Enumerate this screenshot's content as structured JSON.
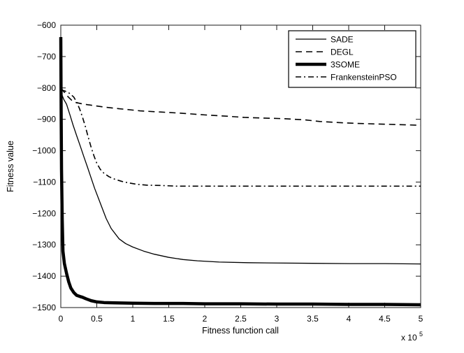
{
  "figure": {
    "background": "#ffffff",
    "foreground": "#000000",
    "axis_color": "#1a1a1a"
  },
  "chart_data": {
    "type": "line",
    "title": "",
    "xlabel": "Fitness function call",
    "ylabel": "Fitness value",
    "x_exponent": {
      "prefix": "x 10",
      "exp": "5"
    },
    "x_unit_multiplier": 100000,
    "xlim": [
      0,
      5
    ],
    "ylim": [
      -1500,
      -600
    ],
    "grid": false,
    "legend_position": "top-right",
    "x_ticks": [
      0,
      0.5,
      1,
      1.5,
      2,
      2.5,
      3,
      3.5,
      4,
      4.5,
      5
    ],
    "x_tick_labels": [
      "0",
      "0.5",
      "1",
      "1.5",
      "2",
      "2.5",
      "3",
      "3.5",
      "4",
      "4.5",
      "5"
    ],
    "y_ticks": [
      -600,
      -700,
      -800,
      -900,
      -1000,
      -1100,
      -1200,
      -1300,
      -1400,
      -1500
    ],
    "y_tick_labels": [
      "−600",
      "−700",
      "−800",
      "−900",
      "−1000",
      "−1100",
      "−1200",
      "−1300",
      "−1400",
      "−1500"
    ],
    "series": [
      {
        "name": "SADE",
        "line_style": "solid",
        "line_width": 1.3,
        "color": "#000000",
        "points": [
          [
            0,
            -812
          ],
          [
            0.04,
            -836
          ],
          [
            0.08,
            -852
          ],
          [
            0.13,
            -888
          ],
          [
            0.17,
            -918
          ],
          [
            0.22,
            -952
          ],
          [
            0.27,
            -985
          ],
          [
            0.32,
            -1019
          ],
          [
            0.37,
            -1052
          ],
          [
            0.42,
            -1086
          ],
          [
            0.47,
            -1120
          ],
          [
            0.52,
            -1150
          ],
          [
            0.57,
            -1180
          ],
          [
            0.63,
            -1216
          ],
          [
            0.7,
            -1248
          ],
          [
            0.81,
            -1281
          ],
          [
            0.9,
            -1296
          ],
          [
            1.0,
            -1307
          ],
          [
            1.15,
            -1320
          ],
          [
            1.3,
            -1330
          ],
          [
            1.5,
            -1340
          ],
          [
            1.7,
            -1347
          ],
          [
            1.9,
            -1351
          ],
          [
            2.2,
            -1355
          ],
          [
            2.6,
            -1357
          ],
          [
            3.0,
            -1358
          ],
          [
            3.5,
            -1359
          ],
          [
            4.0,
            -1360
          ],
          [
            4.5,
            -1360
          ],
          [
            5.0,
            -1361
          ]
        ]
      },
      {
        "name": "DEGL",
        "line_style": "dashed",
        "line_width": 1.6,
        "color": "#000000",
        "points": [
          [
            0,
            -800
          ],
          [
            0.05,
            -814
          ],
          [
            0.1,
            -828
          ],
          [
            0.15,
            -839
          ],
          [
            0.2,
            -846
          ],
          [
            0.3,
            -851
          ],
          [
            0.45,
            -856
          ],
          [
            0.6,
            -861
          ],
          [
            0.8,
            -866
          ],
          [
            1.1,
            -873
          ],
          [
            1.4,
            -877
          ],
          [
            1.7,
            -881
          ],
          [
            2.0,
            -886
          ],
          [
            2.3,
            -890
          ],
          [
            2.55,
            -894
          ],
          [
            2.8,
            -896
          ],
          [
            3.1,
            -898
          ],
          [
            3.4,
            -902
          ],
          [
            3.6,
            -907
          ],
          [
            3.9,
            -911
          ],
          [
            4.1,
            -913
          ],
          [
            4.4,
            -915
          ],
          [
            4.7,
            -917
          ],
          [
            5.0,
            -919
          ]
        ]
      },
      {
        "name": "3SOME",
        "line_style": "solid",
        "line_width": 4.5,
        "color": "#000000",
        "points": [
          [
            0,
            -638
          ],
          [
            0.005,
            -880
          ],
          [
            0.01,
            -1060
          ],
          [
            0.02,
            -1220
          ],
          [
            0.03,
            -1320
          ],
          [
            0.05,
            -1360
          ],
          [
            0.08,
            -1391
          ],
          [
            0.11,
            -1418
          ],
          [
            0.14,
            -1438
          ],
          [
            0.18,
            -1452
          ],
          [
            0.22,
            -1461
          ],
          [
            0.27,
            -1465
          ],
          [
            0.3,
            -1467
          ],
          [
            0.35,
            -1472
          ],
          [
            0.42,
            -1478
          ],
          [
            0.5,
            -1482
          ],
          [
            0.6,
            -1484
          ],
          [
            0.75,
            -1485
          ],
          [
            1.0,
            -1486
          ],
          [
            1.3,
            -1487
          ],
          [
            1.7,
            -1487
          ],
          [
            2.0,
            -1488
          ],
          [
            2.5,
            -1488
          ],
          [
            3.0,
            -1489
          ],
          [
            3.5,
            -1489
          ],
          [
            4.0,
            -1490
          ],
          [
            4.5,
            -1490
          ],
          [
            5.0,
            -1491
          ]
        ]
      },
      {
        "name": "FrankensteinPSO",
        "line_style": "dashdot",
        "line_width": 1.6,
        "color": "#000000",
        "points": [
          [
            0,
            -806
          ],
          [
            0.06,
            -810
          ],
          [
            0.12,
            -817
          ],
          [
            0.18,
            -829
          ],
          [
            0.22,
            -845
          ],
          [
            0.26,
            -866
          ],
          [
            0.3,
            -892
          ],
          [
            0.34,
            -922
          ],
          [
            0.38,
            -956
          ],
          [
            0.42,
            -988
          ],
          [
            0.46,
            -1016
          ],
          [
            0.5,
            -1040
          ],
          [
            0.55,
            -1060
          ],
          [
            0.6,
            -1072
          ],
          [
            0.67,
            -1083
          ],
          [
            0.75,
            -1091
          ],
          [
            0.85,
            -1098
          ],
          [
            0.95,
            -1103
          ],
          [
            1.05,
            -1107
          ],
          [
            1.2,
            -1110
          ],
          [
            1.4,
            -1111
          ],
          [
            1.6,
            -1113
          ],
          [
            2.0,
            -1113
          ],
          [
            2.5,
            -1113
          ],
          [
            3.0,
            -1113
          ],
          [
            3.5,
            -1113
          ],
          [
            4.0,
            -1113
          ],
          [
            4.5,
            -1113
          ],
          [
            5.0,
            -1113
          ]
        ]
      }
    ]
  }
}
